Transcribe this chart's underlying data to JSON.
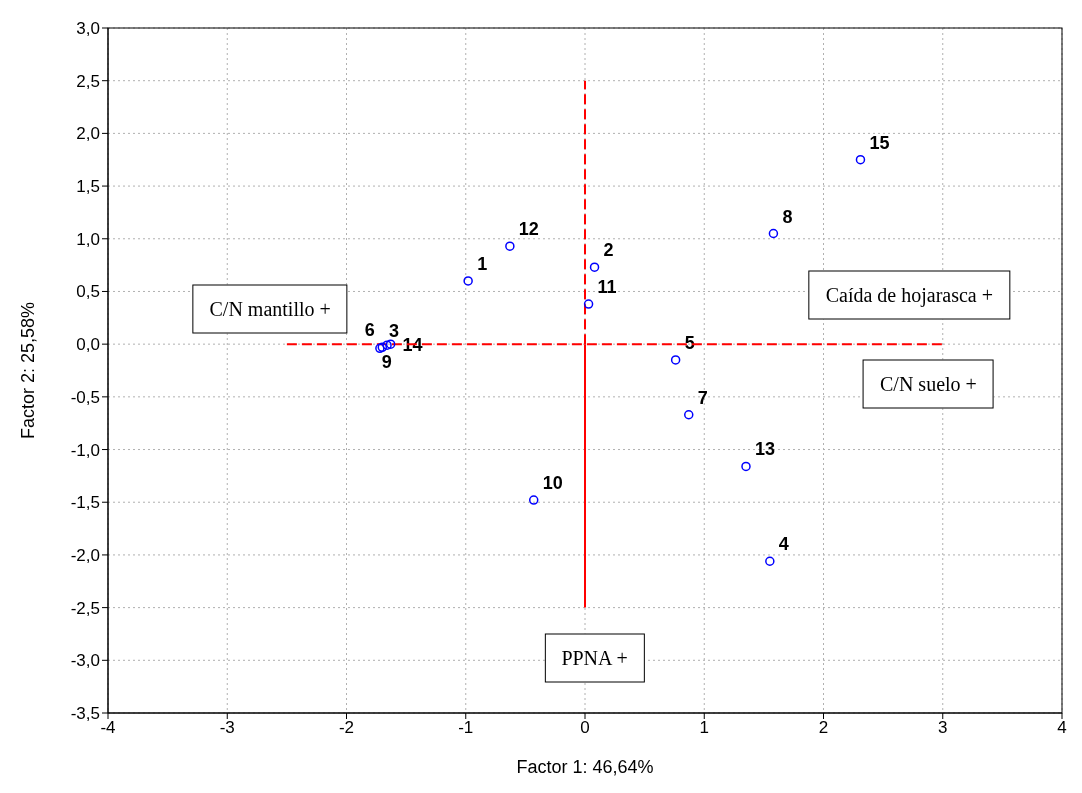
{
  "chart_data": {
    "type": "scatter",
    "xlabel": "Factor 1: 46,64%",
    "ylabel": "Factor 2: 25,58%",
    "xlim": [
      -4,
      4
    ],
    "xticks": [
      -4,
      -3,
      -2,
      -1,
      0,
      1,
      2,
      3,
      4
    ],
    "ylim": [
      -3.5,
      3.0
    ],
    "yticks": [
      {
        "value": -3.5,
        "label": "-3,5"
      },
      {
        "value": -3,
        "label": "-3,0"
      },
      {
        "value": -2.5,
        "label": "-2,5"
      },
      {
        "value": -2,
        "label": "-2,0"
      },
      {
        "value": -1.5,
        "label": "-1,5"
      },
      {
        "value": -1,
        "label": "-1,0"
      },
      {
        "value": -0.5,
        "label": "-0,5"
      },
      {
        "value": 0,
        "label": "0,0"
      },
      {
        "value": 0.5,
        "label": "0,5"
      },
      {
        "value": 1,
        "label": "1,0"
      },
      {
        "value": 1.5,
        "label": "1,5"
      },
      {
        "value": 2,
        "label": "2,0"
      },
      {
        "value": 2.5,
        "label": "2,5"
      },
      {
        "value": 3,
        "label": "3,0"
      }
    ],
    "grid": true,
    "marker": "circle",
    "series": [
      {
        "type": "line",
        "color": "#ff0000",
        "line_style": "dashed",
        "marker": "none",
        "x": [
          -2.5,
          3
        ],
        "values": [
          0,
          0
        ]
      },
      {
        "type": "line",
        "color": "#ff0000",
        "line_style": "dashed",
        "marker": "none",
        "x": [
          0,
          0
        ],
        "values": [
          0,
          2.5
        ]
      },
      {
        "type": "line",
        "color": "#ff0000",
        "line_style": "solid",
        "marker": "none",
        "x": [
          0,
          0
        ],
        "values": [
          -2.5,
          0
        ]
      },
      {
        "color": "#0000ff",
        "x": [
          -0.98,
          0.08,
          -1.72,
          1.55,
          0.76,
          -1.7,
          0.87,
          1.58,
          -1.66,
          -0.43,
          0.03,
          -0.63,
          1.35,
          -1.63,
          2.31
        ],
        "values": [
          0.6,
          0.73,
          -0.04,
          -2.06,
          -0.15,
          -0.03,
          -0.67,
          1.05,
          -0.01,
          -1.48,
          0.38,
          0.93,
          -1.16,
          0.0,
          1.75
        ]
      }
    ],
    "annotations": [
      "C/N mantillo +",
      "Caída de hojarasca +",
      "C/N suelo +",
      "PPNA +",
      {
        "text": "1",
        "x": -0.98,
        "y": 0.6
      },
      {
        "text": "2",
        "x": 0.08,
        "y": 0.73
      },
      {
        "text": "3",
        "x": -1.72,
        "y": -0.04
      },
      {
        "text": "4",
        "x": 1.55,
        "y": -2.06
      },
      {
        "text": "5",
        "x": 0.76,
        "y": -0.15
      },
      {
        "text": "6",
        "x": -1.7,
        "y": -0.03
      },
      {
        "text": "7",
        "x": 0.87,
        "y": -0.67
      },
      {
        "text": "8",
        "x": 1.58,
        "y": 1.05
      },
      {
        "text": "9",
        "x": -1.66,
        "y": -0.01
      },
      {
        "text": "10",
        "x": -0.43,
        "y": -1.48
      },
      {
        "text": "11",
        "x": 0.03,
        "y": 0.38
      },
      {
        "text": "12",
        "x": -0.63,
        "y": 0.93
      },
      {
        "text": "13",
        "x": 1.35,
        "y": -1.16
      },
      {
        "text": "14",
        "x": -1.63,
        "y": 0.0
      },
      {
        "text": "15",
        "x": 2.31,
        "y": 1.75
      }
    ]
  }
}
